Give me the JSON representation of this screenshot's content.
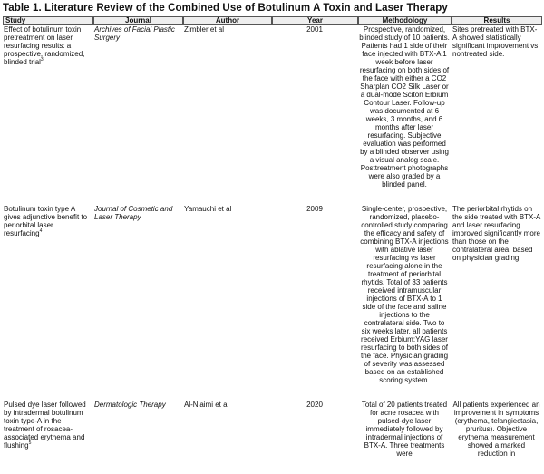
{
  "title": "Table 1. Literature Review of the Combined Use of Botulinum A Toxin and Laser Therapy",
  "headers": [
    "Study",
    "Journal",
    "Author",
    "Year",
    "Methodology",
    "Results"
  ],
  "rows": [
    {
      "study": "Effect of botulinum toxin pretreatment on laser resurfacing results: a prospective, randomized, blinded trial",
      "ref": "3",
      "journal": "Archives of Facial Plastic Surgery",
      "author": "Zimbler et al",
      "year": "2001",
      "methodology": "Prospective, randomized, blinded study of 10 patients. Patients had 1 side of their face injected with BTX-A 1 week before laser resurfacing on both sides of the face with either a CO2 Sharplan CO2 Silk Laser or a dual-mode Sciton Erbium Contour Laser. Follow-up was documented at 6 weeks, 3 months, and 6 months after laser resurfacing. Subjective evaluation was performed by a blinded observer using a visual analog scale. Posttreatment photographs were also graded by a blinded panel.",
      "results": "Sites pretreated with BTX-A showed statistically significant improvement vs nontreated side."
    },
    {
      "study": "Botulinum toxin type A gives adjunctive benefit to periorbital laser resurfacing",
      "ref": "4",
      "journal": "Journal of Cosmetic and Laser Therapy",
      "author": "Yamauchi et al",
      "year": "2009",
      "methodology": "Single-center, prospective, randomized, placebo-controlled study comparing the efficacy and safety of combining BTX-A injections with ablative laser resurfacing vs laser resurfacing alone in the treatment of periorbital rhytids. Total of 33 patients received intramuscular injections of BTX-A to 1 side of the face and saline injections to the contralateral side. Two to six weeks later, all patients received Erbium:YAG laser resurfacing to both sides of the face. Physician grading of severity was assessed based on an established scoring system.",
      "results": "The periorbital rhytids on the side treated with BTX-A and laser resurfacing improved significantly more than those on the contralateral area, based on physician grading."
    },
    {
      "study": "Pulsed dye laser followed by intradermal botulinum toxin type-A in the treatment of rosacea-associated erythema and flushing",
      "ref": "5",
      "journal": "Dermatologic Therapy",
      "author": "Al-Niaimi et al",
      "year": "2020",
      "methodology": "Total of 20 patients treated for acne rosacea with pulsed-dye laser immediately followed by intradermal injections of BTX-A. Three treatments were",
      "results": "All patients experienced an improvement in symptoms (erythema, telangiectasia, pruritus). Objective erythema measurement showed a marked reduction in"
    }
  ]
}
